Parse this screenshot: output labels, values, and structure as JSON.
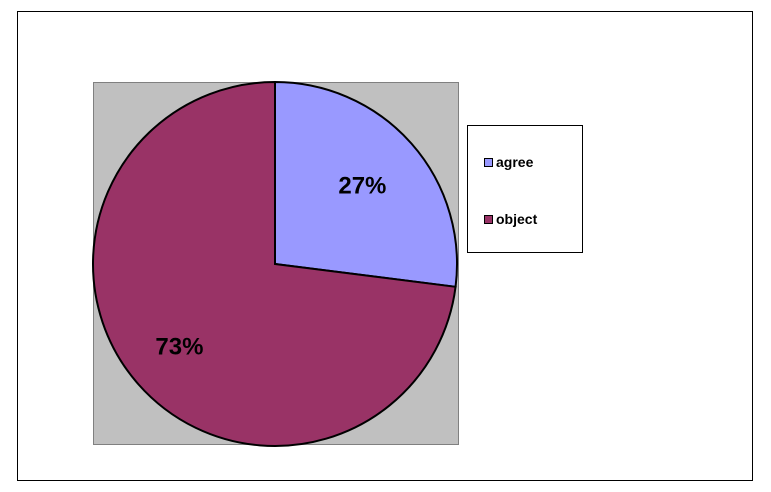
{
  "chart_data": {
    "type": "pie",
    "categories": [
      "agree",
      "object"
    ],
    "values": [
      27,
      73
    ],
    "data_labels": [
      "27%",
      "73%"
    ],
    "colors": [
      "#9999ff",
      "#993366"
    ],
    "plot_background": "#c0c0c0",
    "legend_position": "right",
    "start_angle": "12-o'clock",
    "direction": "clockwise"
  }
}
